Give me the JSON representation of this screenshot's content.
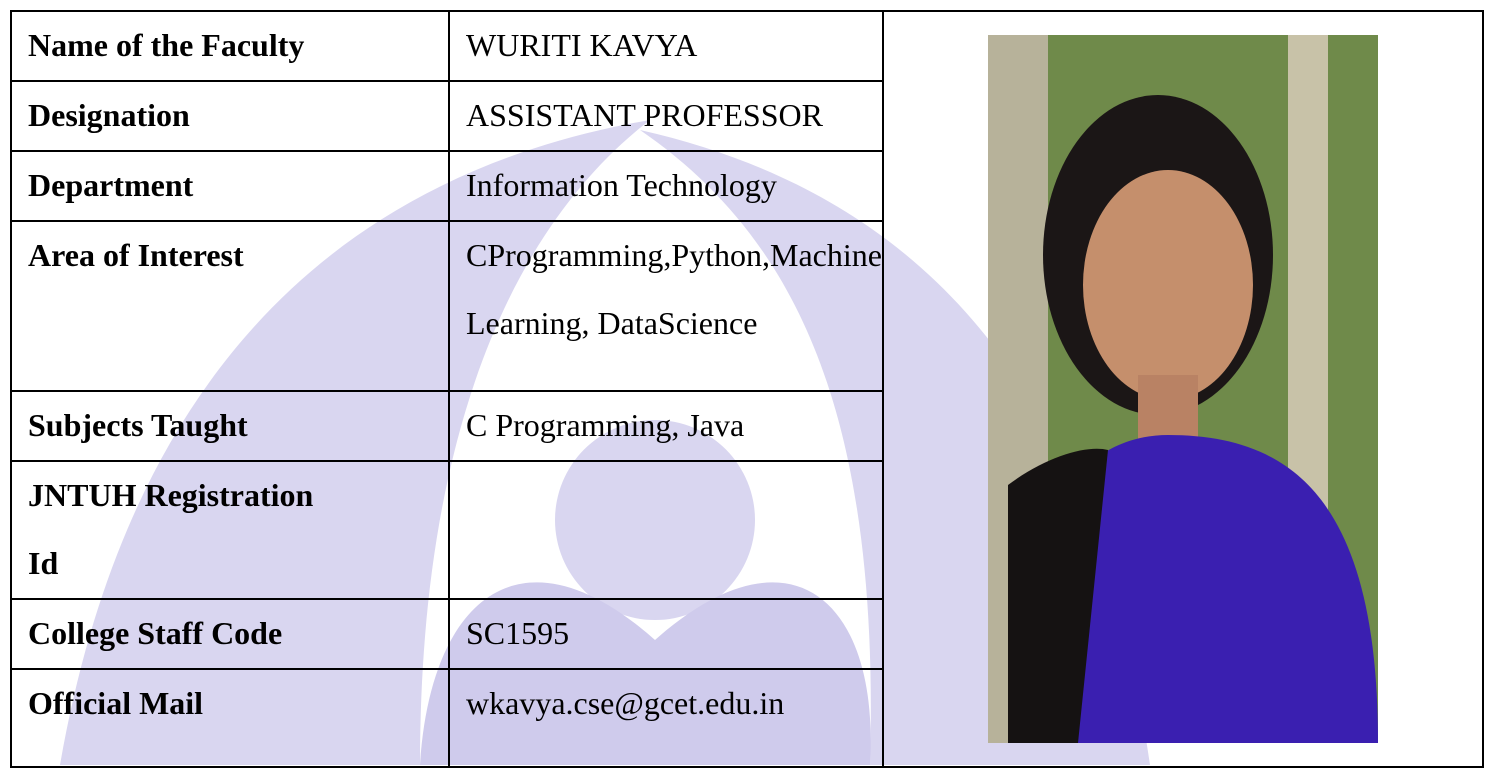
{
  "profile": {
    "rows": [
      {
        "label": [
          "Name of the Faculty"
        ],
        "value": [
          "WURITI KAVYA"
        ]
      },
      {
        "label": [
          "Designation"
        ],
        "value": [
          "ASSISTANT PROFESSOR"
        ]
      },
      {
        "label": [
          "Department"
        ],
        "value": [
          "Information Technology"
        ]
      },
      {
        "label": [
          "Area of Interest"
        ],
        "value": [
          "CProgramming,Python,Machine",
          "Learning, DataScience"
        ]
      },
      {
        "label": [
          "Subjects Taught"
        ],
        "value": [
          "C Programming, Java"
        ]
      },
      {
        "label": [
          "JNTUH Registration",
          "Id"
        ]
      },
      {
        "label": [
          "College Staff Code"
        ],
        "value": [
          "SC1595"
        ]
      },
      {
        "label": [
          "Official Mail"
        ],
        "value": [
          "wkavya.cse@gcet.edu.in"
        ]
      }
    ]
  }
}
